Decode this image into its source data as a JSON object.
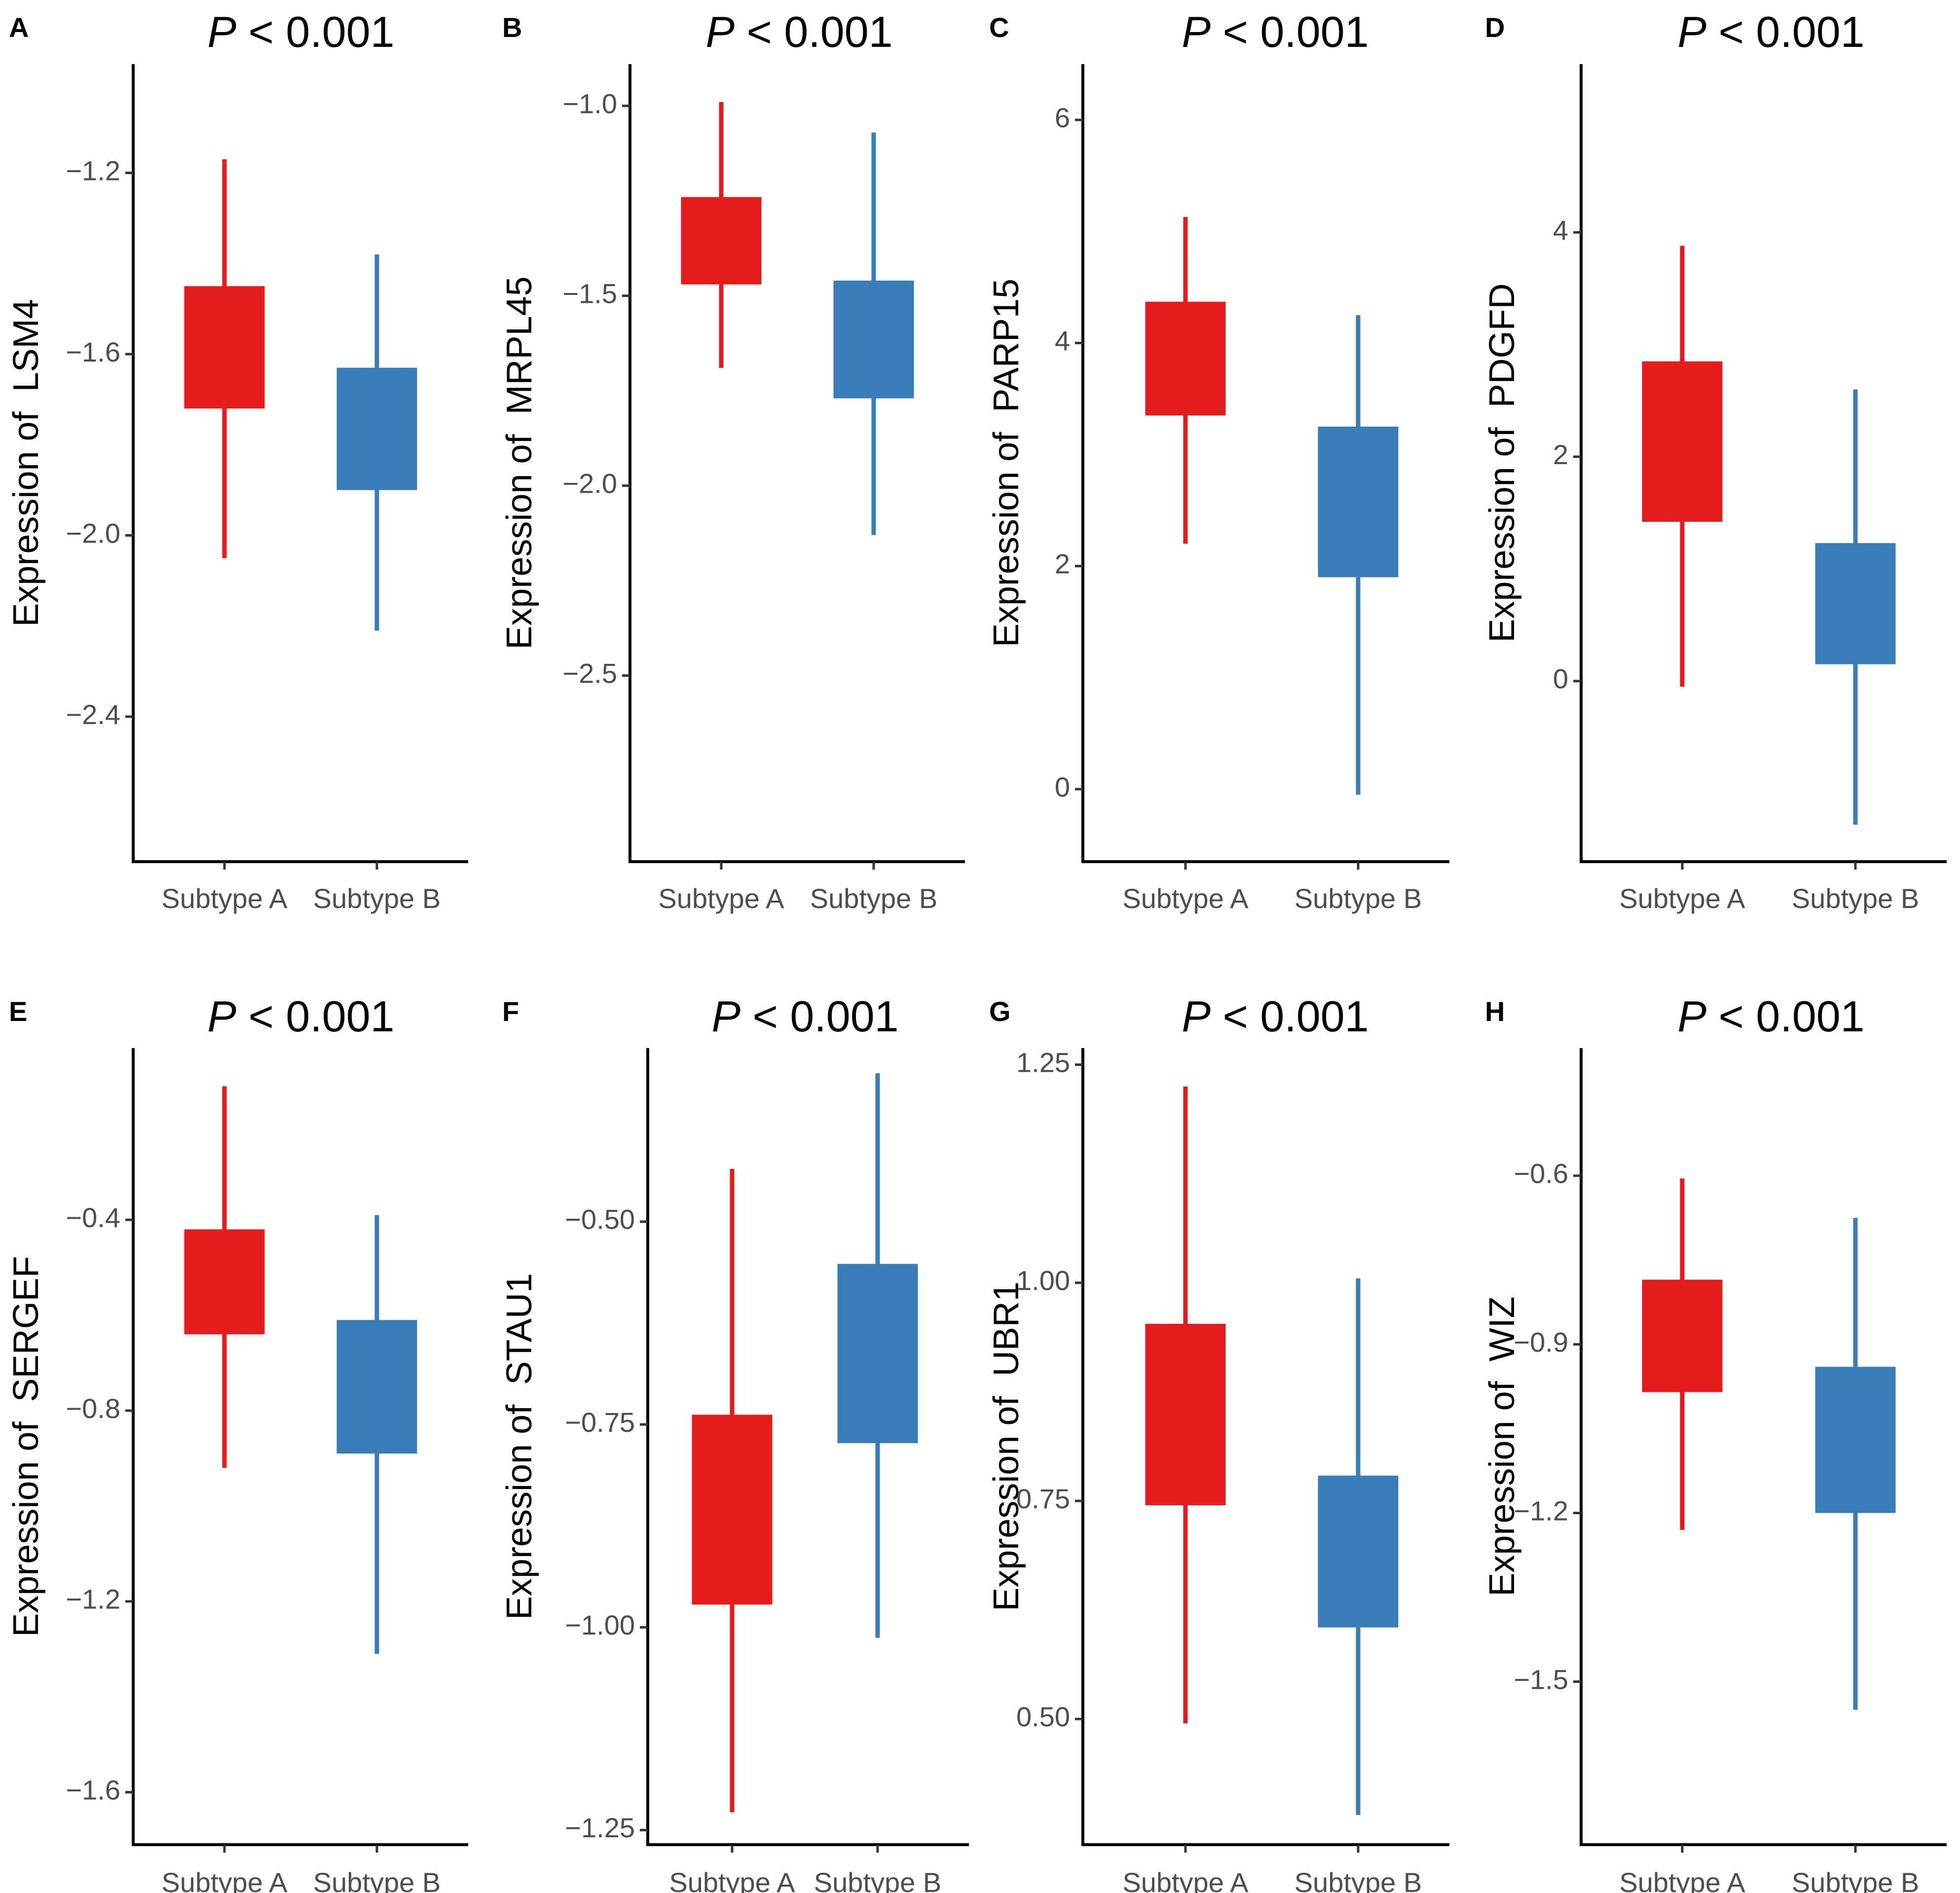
{
  "colors": {
    "subtype_a": "#e41a1c",
    "subtype_b": "#377eb8"
  },
  "chart_data": [
    {
      "type": "box",
      "panel": "A",
      "title_p": "P",
      "title_rest": " < 0.001",
      "ylabel_prefix": "Expression of",
      "gene": "LSM4",
      "categories": [
        "Subtype A",
        "Subtype B"
      ],
      "ylim": [
        -2.72,
        -0.96
      ],
      "ticks": [
        -1.2,
        -1.6,
        -2.0,
        -2.4
      ],
      "tick_labels": [
        "−1.2",
        "−1.6",
        "−2.0",
        "−2.4"
      ],
      "boxes": [
        {
          "min": -2.05,
          "q1": -1.72,
          "q3": -1.45,
          "max": -1.17
        },
        {
          "min": -2.21,
          "q1": -1.9,
          "q3": -1.63,
          "max": -1.38
        }
      ]
    },
    {
      "type": "box",
      "panel": "B",
      "title_p": "P",
      "title_rest": " < 0.001",
      "ylabel_prefix": "Expression of",
      "gene": "MRPL45",
      "categories": [
        "Subtype A",
        "Subtype B"
      ],
      "ylim": [
        -2.99,
        -0.89
      ],
      "ticks": [
        -1.0,
        -1.5,
        -2.0,
        -2.5
      ],
      "tick_labels": [
        "−1.0",
        "−1.5",
        "−2.0",
        "−2.5"
      ],
      "boxes": [
        {
          "min": -1.69,
          "q1": -1.47,
          "q3": -1.24,
          "max": -0.99
        },
        {
          "min": -2.13,
          "q1": -1.77,
          "q3": -1.46,
          "max": -1.07
        }
      ]
    },
    {
      "type": "box",
      "panel": "C",
      "title_p": "P",
      "title_rest": " < 0.001",
      "ylabel_prefix": "Expression of",
      "gene": "PARP15",
      "categories": [
        "Subtype A",
        "Subtype B"
      ],
      "ylim": [
        -0.65,
        6.5
      ],
      "ticks": [
        0,
        2,
        4,
        6
      ],
      "tick_labels": [
        "0",
        "2",
        "4",
        "6"
      ],
      "boxes": [
        {
          "min": 2.2,
          "q1": 3.35,
          "q3": 4.37,
          "max": 5.13
        },
        {
          "min": -0.05,
          "q1": 1.9,
          "q3": 3.25,
          "max": 4.25
        }
      ]
    },
    {
      "type": "box",
      "panel": "D",
      "title_p": "P",
      "title_rest": " < 0.001",
      "ylabel_prefix": "Expression of",
      "gene": "PDGFD",
      "categories": [
        "Subtype A",
        "Subtype B"
      ],
      "ylim": [
        -1.61,
        5.5
      ],
      "ticks": [
        4,
        2,
        0
      ],
      "tick_labels": [
        "4",
        "2",
        "0"
      ],
      "boxes": [
        {
          "min": -0.05,
          "q1": 1.42,
          "q3": 2.85,
          "max": 3.88
        },
        {
          "min": -1.28,
          "q1": 0.15,
          "q3": 1.23,
          "max": 2.6
        }
      ]
    },
    {
      "type": "box",
      "panel": "E",
      "title_p": "P",
      "title_rest": " < 0.001",
      "ylabel_prefix": "Expression of",
      "gene": "SERGEF",
      "categories": [
        "Subtype A",
        "Subtype B"
      ],
      "ylim": [
        -1.71,
        -0.04
      ],
      "ticks": [
        -0.4,
        -0.8,
        -1.2,
        -1.6
      ],
      "tick_labels": [
        "−0.4",
        "−0.8",
        "−1.2",
        "−1.6"
      ],
      "boxes": [
        {
          "min": -0.92,
          "q1": -0.64,
          "q3": -0.42,
          "max": -0.12
        },
        {
          "min": -1.31,
          "q1": -0.89,
          "q3": -0.61,
          "max": -0.39
        }
      ]
    },
    {
      "type": "box",
      "panel": "F",
      "title_p": "P",
      "title_rest": " < 0.001",
      "ylabel_prefix": "Expression of",
      "gene": "STAU1",
      "categories": [
        "Subtype A",
        "Subtype B"
      ],
      "ylim": [
        -1.268,
        -0.286
      ],
      "ticks": [
        -0.5,
        -0.75,
        -1.0,
        -1.25
      ],
      "tick_labels": [
        "−0.50",
        "−0.75",
        "−1.00",
        "−1.25"
      ],
      "boxes": [
        {
          "min": -1.228,
          "q1": -0.972,
          "q3": -0.738,
          "max": -0.435
        },
        {
          "min": -1.013,
          "q1": -0.773,
          "q3": -0.552,
          "max": -0.317
        }
      ]
    },
    {
      "type": "box",
      "panel": "G",
      "title_p": "P",
      "title_rest": " < 0.001",
      "ylabel_prefix": "Expression of",
      "gene": "UBR1",
      "categories": [
        "Subtype A",
        "Subtype B"
      ],
      "ylim": [
        0.356,
        1.269
      ],
      "ticks": [
        1.25,
        1.0,
        0.75,
        0.5
      ],
      "tick_labels": [
        "1.25",
        "1.00",
        "0.75",
        "0.50"
      ],
      "boxes": [
        {
          "min": 0.495,
          "q1": 0.745,
          "q3": 0.953,
          "max": 1.225
        },
        {
          "min": 0.39,
          "q1": 0.605,
          "q3": 0.779,
          "max": 1.005
        }
      ]
    },
    {
      "type": "box",
      "panel": "H",
      "title_p": "P",
      "title_rest": " < 0.001",
      "ylabel_prefix": "Expression of",
      "gene": "WIZ",
      "categories": [
        "Subtype A",
        "Subtype B"
      ],
      "ylim": [
        -1.79,
        -0.373
      ],
      "ticks": [
        -0.6,
        -0.9,
        -1.2,
        -1.5
      ],
      "tick_labels": [
        "−0.6",
        "−0.9",
        "−1.2",
        "−1.5"
      ],
      "boxes": [
        {
          "min": -1.23,
          "q1": -0.985,
          "q3": -0.785,
          "max": -0.605
        },
        {
          "min": -1.55,
          "q1": -1.2,
          "q3": -0.94,
          "max": -0.675
        }
      ]
    }
  ]
}
